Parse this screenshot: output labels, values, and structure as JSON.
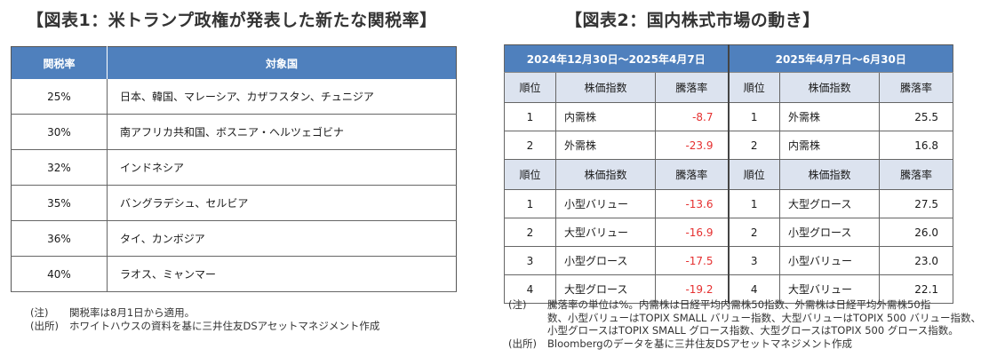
{
  "table1": {
    "title": "【図表1：米トランプ政権が発表した新たな関税率】",
    "headers": [
      "関税率",
      "対象国"
    ],
    "rows": [
      {
        "rate": "25%",
        "countries": "日本、韓国、マレーシア、カザフスタン、チュニジア"
      },
      {
        "rate": "30%",
        "countries": "南アフリカ共和国、ボスニア・ヘルツェゴビナ"
      },
      {
        "rate": "32%",
        "countries": "インドネシア"
      },
      {
        "rate": "35%",
        "countries": "バングラデシュ、セルビア"
      },
      {
        "rate": "36%",
        "countries": "タイ、カンボジア"
      },
      {
        "rate": "40%",
        "countries": "ラオス、ミャンマー"
      }
    ],
    "notes": [
      {
        "label": "(注)",
        "text": "関税率は8月1日から適用。"
      },
      {
        "label": "(出所)",
        "text": "ホワイトハウスの資料を基に三井住友DSアセットマネジメント作成"
      }
    ]
  },
  "table2": {
    "title": "【図表2：国内株式市場の動き】",
    "periods": [
      "2024年12月30日～2025年4月7日",
      "2025年4月7日～6月30日"
    ],
    "headers": [
      "順位",
      "株価指数",
      "騰落率"
    ],
    "block1": [
      {
        "r1": "1",
        "i1": "内需株",
        "v1": "-8.7",
        "r2": "1",
        "i2": "外需株",
        "v2": "25.5"
      },
      {
        "r1": "2",
        "i1": "外需株",
        "v1": "-23.9",
        "r2": "2",
        "i2": "内需株",
        "v2": "16.8"
      }
    ],
    "block2": [
      {
        "r1": "1",
        "i1": "小型バリュー",
        "v1": "-13.6",
        "r2": "1",
        "i2": "大型グロース",
        "v2": "27.5"
      },
      {
        "r1": "2",
        "i1": "大型バリュー",
        "v1": "-16.9",
        "r2": "2",
        "i2": "小型グロース",
        "v2": "26.0"
      },
      {
        "r1": "3",
        "i1": "小型グロース",
        "v1": "-17.5",
        "r2": "3",
        "i2": "小型バリュー",
        "v2": "23.0"
      },
      {
        "r1": "4",
        "i1": "大型グロース",
        "v1": "-19.2",
        "r2": "4",
        "i2": "大型バリュー",
        "v2": "22.1"
      }
    ],
    "notes": {
      "label1": "(注)",
      "line1": "騰落率の単位は%。内需株は日経平均内需株50指数、外需株は日経平均外需株50指",
      "line2": "数、小型バリューはTOPIX SMALL バリュー指数、大型バリューはTOPIX 500 バリュー指数、",
      "line3": "小型グロースはTOPIX SMALL グロース指数、大型グロースはTOPIX 500 グロース指数。",
      "label2": "(出所)",
      "line4": "Bloombergのデータを基に三井住友DSアセットマネジメント作成"
    }
  },
  "colors": {
    "header_blue": "#4f80bd",
    "subheader": "#dce3ef",
    "negative": "#e53030"
  }
}
